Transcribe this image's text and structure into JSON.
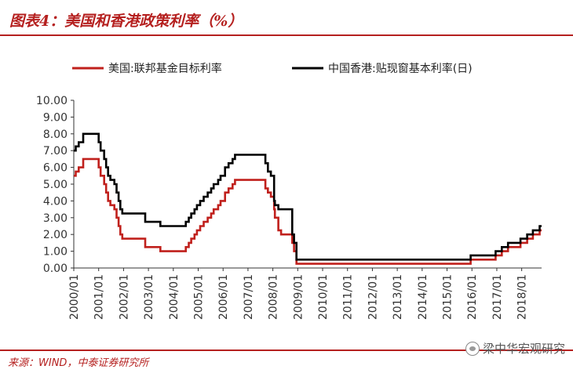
{
  "figure": {
    "title": "图表4：美国和香港政策利率（%）",
    "source": "来源：WIND，中泰证券研究所",
    "watermark": "梁中华宏观研究"
  },
  "colors": {
    "accent": "#b5201f",
    "us_series": "#c0201c",
    "hk_series": "#000000"
  },
  "chart_data": {
    "type": "line",
    "title": "",
    "xlabel": "",
    "ylabel": "",
    "ylim": [
      0,
      10
    ],
    "xlim": [
      2000.0,
      2018.8
    ],
    "step": true,
    "grid": false,
    "legend_position": "top",
    "y_ticks": [
      "0.00",
      "1.00",
      "2.00",
      "3.00",
      "4.00",
      "5.00",
      "6.00",
      "7.00",
      "8.00",
      "9.00",
      "10.00"
    ],
    "x_ticks": [
      "2000/01",
      "2001/01",
      "2002/01",
      "2003/01",
      "2004/01",
      "2005/01",
      "2006/01",
      "2007/01",
      "2008/01",
      "2009/01",
      "2010/01",
      "2011/01",
      "2012/01",
      "2013/01",
      "2014/01",
      "2015/01",
      "2016/01",
      "2017/01",
      "2018/01"
    ],
    "series": [
      {
        "name": "美国:联邦基金目标利率",
        "color": "#c0201c",
        "points": [
          [
            2000.0,
            5.5
          ],
          [
            2000.08,
            5.75
          ],
          [
            2000.2,
            6.0
          ],
          [
            2000.38,
            6.5
          ],
          [
            2001.0,
            6.0
          ],
          [
            2001.08,
            5.5
          ],
          [
            2001.22,
            5.0
          ],
          [
            2001.3,
            4.5
          ],
          [
            2001.38,
            4.0
          ],
          [
            2001.47,
            3.75
          ],
          [
            2001.63,
            3.5
          ],
          [
            2001.72,
            3.0
          ],
          [
            2001.8,
            2.5
          ],
          [
            2001.87,
            2.0
          ],
          [
            2001.95,
            1.75
          ],
          [
            2002.87,
            1.25
          ],
          [
            2003.48,
            1.0
          ],
          [
            2004.5,
            1.25
          ],
          [
            2004.62,
            1.5
          ],
          [
            2004.72,
            1.75
          ],
          [
            2004.85,
            2.0
          ],
          [
            2004.95,
            2.25
          ],
          [
            2005.08,
            2.5
          ],
          [
            2005.22,
            2.75
          ],
          [
            2005.38,
            3.0
          ],
          [
            2005.52,
            3.25
          ],
          [
            2005.62,
            3.5
          ],
          [
            2005.8,
            3.75
          ],
          [
            2005.9,
            4.0
          ],
          [
            2006.08,
            4.5
          ],
          [
            2006.22,
            4.75
          ],
          [
            2006.38,
            5.0
          ],
          [
            2006.48,
            5.25
          ],
          [
            2007.7,
            4.75
          ],
          [
            2007.8,
            4.5
          ],
          [
            2007.92,
            4.25
          ],
          [
            2008.05,
            3.5
          ],
          [
            2008.08,
            3.0
          ],
          [
            2008.22,
            2.25
          ],
          [
            2008.33,
            2.0
          ],
          [
            2008.78,
            1.5
          ],
          [
            2008.85,
            1.0
          ],
          [
            2008.95,
            0.25
          ],
          [
            2015.95,
            0.5
          ],
          [
            2016.95,
            0.75
          ],
          [
            2017.2,
            1.0
          ],
          [
            2017.45,
            1.25
          ],
          [
            2017.95,
            1.5
          ],
          [
            2018.22,
            1.75
          ],
          [
            2018.45,
            2.0
          ],
          [
            2018.72,
            2.25
          ]
        ]
      },
      {
        "name": "中国香港:贴现窗基本利率(日)",
        "color": "#000000",
        "points": [
          [
            2000.0,
            7.0
          ],
          [
            2000.08,
            7.25
          ],
          [
            2000.2,
            7.5
          ],
          [
            2000.38,
            8.0
          ],
          [
            2001.0,
            7.5
          ],
          [
            2001.08,
            7.0
          ],
          [
            2001.22,
            6.5
          ],
          [
            2001.3,
            6.0
          ],
          [
            2001.38,
            5.5
          ],
          [
            2001.47,
            5.25
          ],
          [
            2001.63,
            5.0
          ],
          [
            2001.72,
            4.5
          ],
          [
            2001.8,
            4.0
          ],
          [
            2001.87,
            3.5
          ],
          [
            2001.95,
            3.25
          ],
          [
            2002.87,
            2.75
          ],
          [
            2003.48,
            2.5
          ],
          [
            2004.5,
            2.75
          ],
          [
            2004.62,
            3.0
          ],
          [
            2004.72,
            3.25
          ],
          [
            2004.85,
            3.5
          ],
          [
            2004.95,
            3.75
          ],
          [
            2005.08,
            4.0
          ],
          [
            2005.22,
            4.25
          ],
          [
            2005.38,
            4.5
          ],
          [
            2005.52,
            4.75
          ],
          [
            2005.62,
            5.0
          ],
          [
            2005.8,
            5.25
          ],
          [
            2005.9,
            5.5
          ],
          [
            2006.08,
            6.0
          ],
          [
            2006.22,
            6.25
          ],
          [
            2006.38,
            6.5
          ],
          [
            2006.48,
            6.75
          ],
          [
            2007.7,
            6.25
          ],
          [
            2007.8,
            5.75
          ],
          [
            2007.92,
            5.5
          ],
          [
            2008.05,
            4.0
          ],
          [
            2008.08,
            3.75
          ],
          [
            2008.22,
            3.5
          ],
          [
            2008.78,
            2.0
          ],
          [
            2008.85,
            1.5
          ],
          [
            2008.95,
            0.5
          ],
          [
            2015.95,
            0.75
          ],
          [
            2016.95,
            1.0
          ],
          [
            2017.2,
            1.25
          ],
          [
            2017.45,
            1.5
          ],
          [
            2017.95,
            1.75
          ],
          [
            2018.22,
            2.0
          ],
          [
            2018.45,
            2.25
          ],
          [
            2018.72,
            2.5
          ]
        ]
      }
    ]
  }
}
